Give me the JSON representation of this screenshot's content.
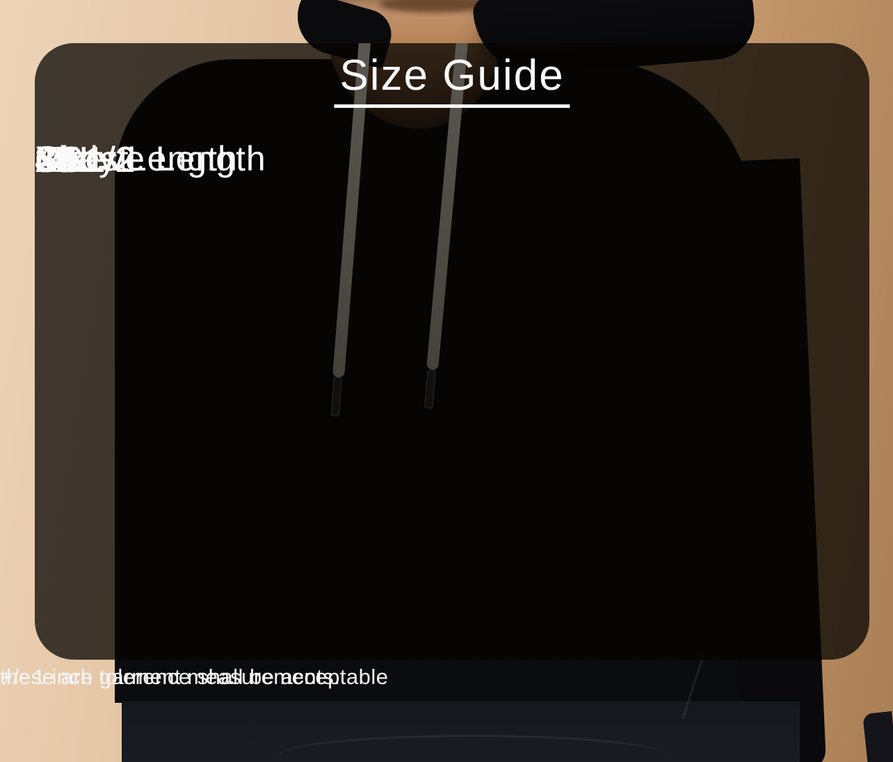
{
  "title": "Size Guide",
  "table": {
    "columns": [
      "Size",
      "Chest",
      "Body Length",
      "Sleeve Length"
    ],
    "rows": [
      {
        "size": "XS",
        "chest": "38",
        "body_length": "25",
        "sleeve_length": "23"
      },
      {
        "size": "S",
        "chest": "40.1/2",
        "body_length": "25.1/2",
        "sleeve_length": "24"
      },
      {
        "size": "M",
        "chest": "43",
        "body_length": "26",
        "sleeve_length": "25"
      },
      {
        "size": "L",
        "chest": "45",
        "body_length": "27.1/2",
        "sleeve_length": "26"
      },
      {
        "size": "XL",
        "chest": "46.1/2",
        "body_length": "28.1/2",
        "sleeve_length": "27"
      },
      {
        "size": "2XL",
        "chest": "49",
        "body_length": "29.1/2",
        "sleeve_length": "28"
      },
      {
        "size": "3XL",
        "chest": "51",
        "body_length": "30",
        "sleeve_length": "29"
      },
      {
        "size": "5XL",
        "chest": "54.1/2",
        "body_length": "31",
        "sleeve_length": "29"
      }
    ]
  },
  "footer": {
    "line1": "+/- 1 inch tolerence shall be acceptable",
    "line2": "these are garment measurements."
  },
  "chart_data": {
    "type": "table",
    "title": "Size Guide",
    "columns": [
      "Size",
      "Chest",
      "Body Length",
      "Sleeve Length"
    ],
    "rows": [
      [
        "XS",
        "38",
        "25",
        "23"
      ],
      [
        "S",
        "40.1/2",
        "25.1/2",
        "24"
      ],
      [
        "M",
        "43",
        "26",
        "25"
      ],
      [
        "L",
        "45",
        "27.1/2",
        "26"
      ],
      [
        "XL",
        "46.1/2",
        "28.1/2",
        "27"
      ],
      [
        "2XL",
        "49",
        "29.1/2",
        "28"
      ],
      [
        "3XL",
        "51",
        "30",
        "29"
      ],
      [
        "5XL",
        "54.1/2",
        "31",
        "29"
      ]
    ],
    "notes": [
      "+/- 1 inch tolerence shall be acceptable",
      "these are garment measurements."
    ]
  },
  "colors": {
    "panel_overlay": "rgba(6,4,2,0.75)",
    "text": "#fafafa",
    "background_tan": "#e6c7a8",
    "background_tan_dark": "#aa7f56",
    "hoodie_black": "#0a090c",
    "drawstring_gray": "#4d4a44"
  }
}
